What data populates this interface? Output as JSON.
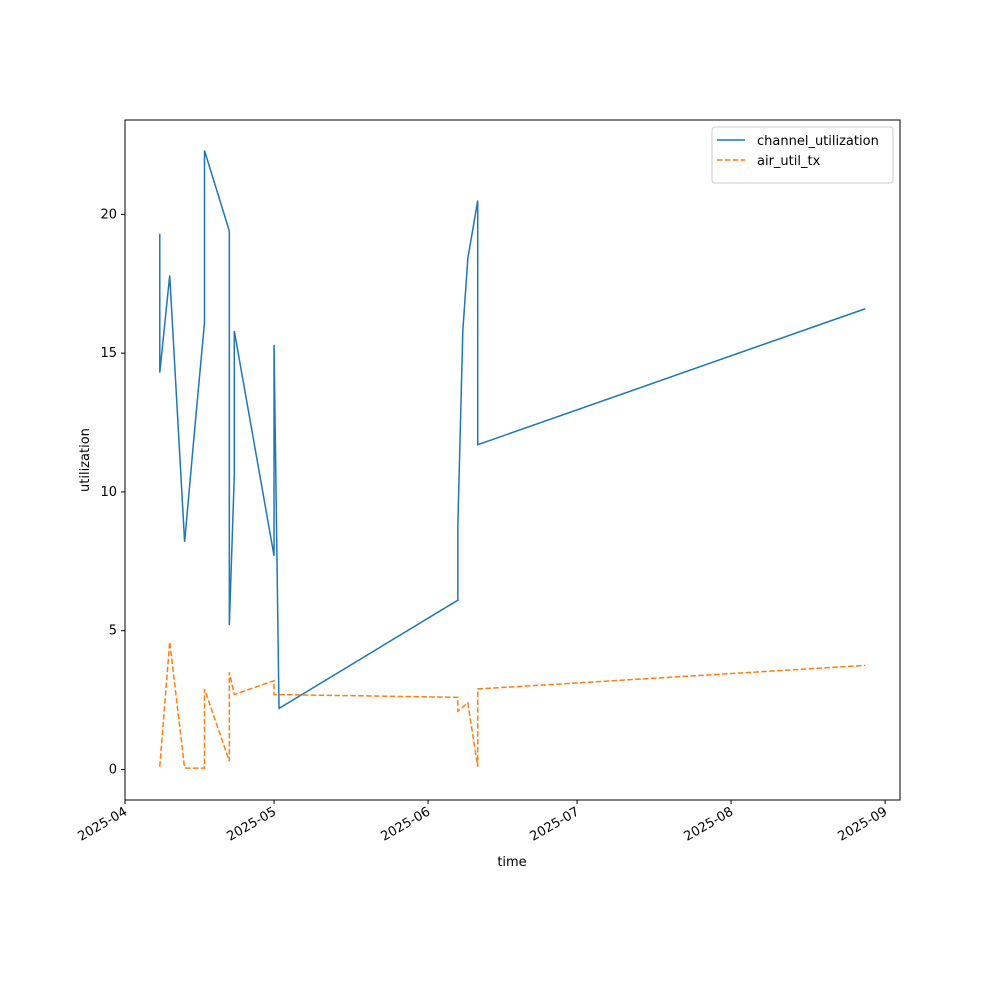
{
  "chart_data": {
    "type": "line",
    "x_label": "time",
    "y_label": "utilization",
    "series": [
      {
        "name": "channel_utilization",
        "color": "#1f77b4",
        "linestyle": "solid",
        "x": [
          "2025-04-08",
          "2025-04-08",
          "2025-04-10",
          "2025-04-13",
          "2025-04-15",
          "2025-04-17",
          "2025-04-17",
          "2025-04-22",
          "2025-04-22",
          "2025-04-23",
          "2025-04-23",
          "2025-05-01",
          "2025-05-01",
          "2025-05-01",
          "2025-05-02",
          "2025-06-07",
          "2025-06-07",
          "2025-06-08",
          "2025-06-09",
          "2025-06-11",
          "2025-06-11",
          "2025-08-28"
        ],
        "values": [
          19.3,
          14.3,
          17.8,
          8.2,
          12.2,
          16.1,
          22.3,
          19.4,
          5.2,
          10.6,
          15.8,
          7.7,
          12.6,
          15.3,
          2.2,
          6.1,
          8.8,
          15.8,
          18.4,
          20.5,
          11.7,
          16.6
        ]
      },
      {
        "name": "air_util_tx",
        "color": "#ff7f0e",
        "linestyle": "dashed",
        "x": [
          "2025-04-08",
          "2025-04-10",
          "2025-04-13",
          "2025-04-17",
          "2025-04-17",
          "2025-04-22",
          "2025-04-22",
          "2025-04-23",
          "2025-05-01",
          "2025-05-01",
          "2025-06-07",
          "2025-06-07",
          "2025-06-09",
          "2025-06-11",
          "2025-06-11",
          "2025-08-28"
        ],
        "values": [
          0.1,
          4.6,
          0.05,
          0.05,
          2.9,
          0.3,
          3.5,
          2.7,
          3.2,
          2.7,
          2.6,
          2.1,
          2.4,
          0.1,
          2.9,
          3.75
        ]
      }
    ],
    "xlim": [
      "2025-04-01",
      "2025-09-04"
    ],
    "xticks": [
      {
        "value": "2025-04-01",
        "label": "2025-04"
      },
      {
        "value": "2025-05-01",
        "label": "2025-05"
      },
      {
        "value": "2025-06-01",
        "label": "2025-06"
      },
      {
        "value": "2025-07-01",
        "label": "2025-07"
      },
      {
        "value": "2025-08-01",
        "label": "2025-08"
      },
      {
        "value": "2025-09-01",
        "label": "2025-09"
      }
    ],
    "ylim": [
      -1.1,
      23.4
    ],
    "yticks": [
      0,
      5,
      10,
      15,
      20
    ],
    "grid": false,
    "legend": "upper right"
  }
}
